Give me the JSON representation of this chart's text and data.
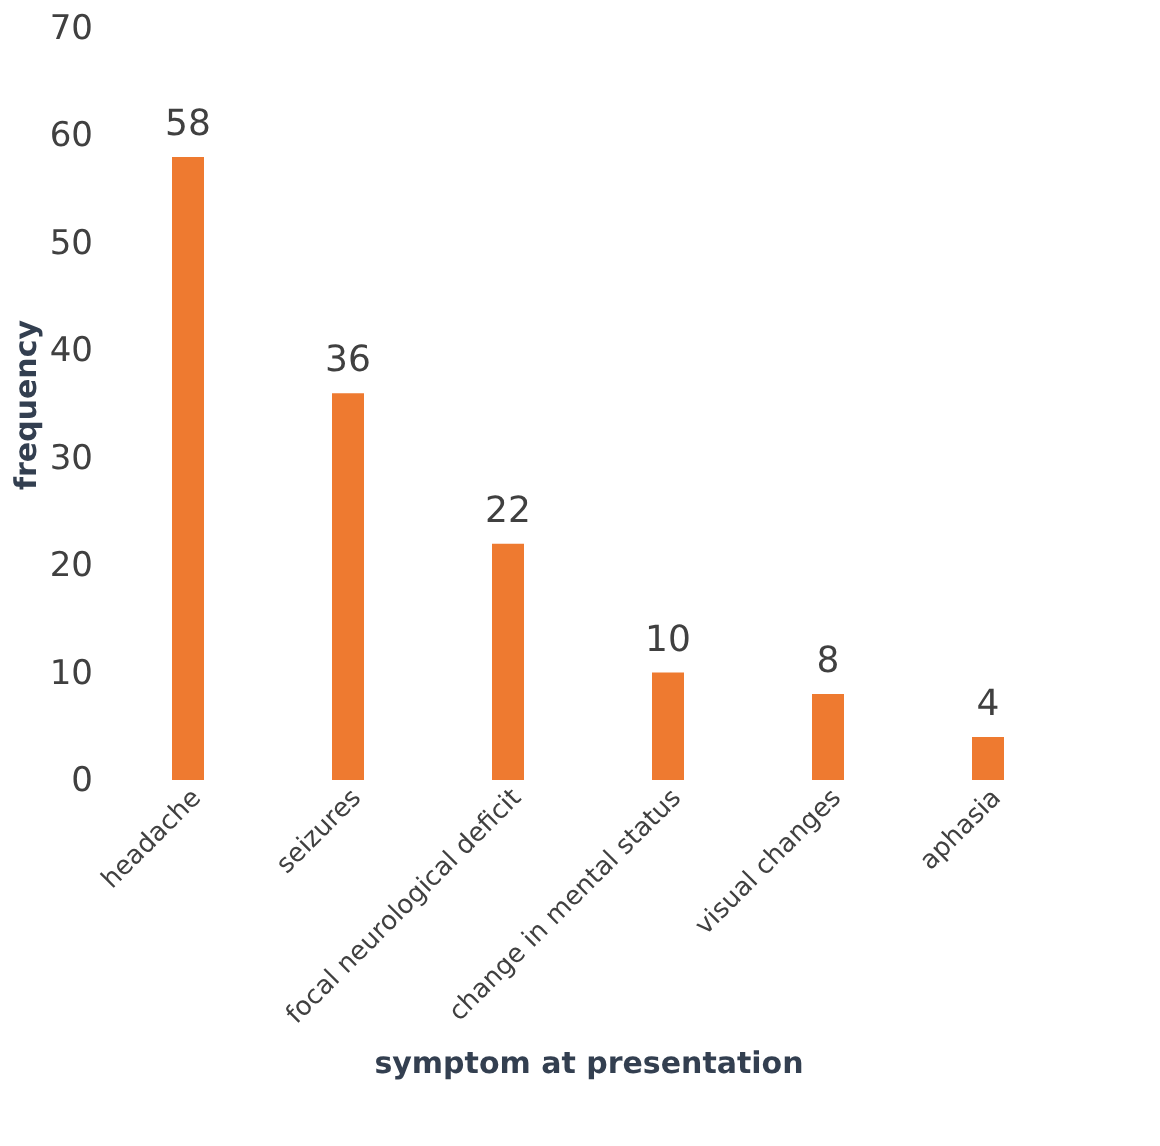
{
  "chart_data": {
    "type": "bar",
    "xlabel": "symptom at presentation",
    "ylabel": "frequency",
    "categories": [
      "headache",
      "seizures",
      "focal neurological deficit",
      "change in mental status",
      "visual changes",
      "aphasia"
    ],
    "values": [
      58,
      36,
      22,
      10,
      8,
      4
    ],
    "color": "#ee7a30",
    "ylim": [
      0,
      70
    ],
    "yticks": [
      0,
      10,
      20,
      30,
      40,
      50,
      60,
      70
    ],
    "grid": false,
    "data_labels": true
  }
}
